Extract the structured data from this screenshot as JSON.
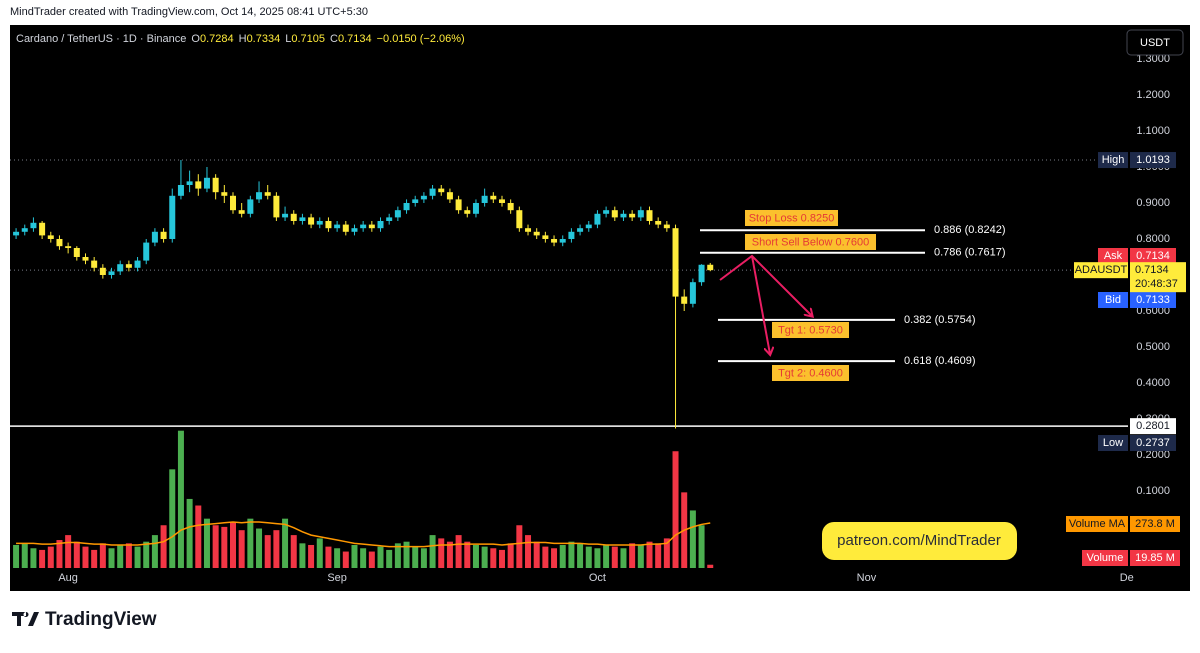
{
  "header": {
    "text": "MindTrader created with TradingView.com, Oct 14, 2025 08:41 UTC+5:30"
  },
  "chart_data": {
    "type": "candlestick",
    "legend": {
      "symbol": "Cardano / TetherUS · 1D · Binance",
      "open_label": "O",
      "open": "0.7284",
      "high_label": "H",
      "high": "0.7334",
      "low_label": "L",
      "low": "0.7105",
      "close_label": "C",
      "close": "0.7134",
      "change": "−0.0150 (−2.06%)"
    },
    "currency": "USDT",
    "up_color": "#26c6da",
    "down_color": "#ffeb3b",
    "xlim": [
      -0.7,
      127.8
    ],
    "xticks": [
      {
        "value": 6,
        "label": "Aug"
      },
      {
        "value": 37,
        "label": "Sep"
      },
      {
        "value": 67,
        "label": "Oct"
      },
      {
        "value": 98,
        "label": "Nov"
      },
      {
        "value": 128,
        "label": "De"
      }
    ],
    "ylim": [
      -0.1139,
      1.3944
    ],
    "yticks": [
      {
        "value": 0.1,
        "label": "0.1000"
      },
      {
        "value": 0.2,
        "label": "0.2000"
      },
      {
        "value": 0.3,
        "label": "0.3000"
      },
      {
        "value": 0.4,
        "label": "0.4000"
      },
      {
        "value": 0.5,
        "label": "0.5000"
      },
      {
        "value": 0.6,
        "label": "0.6000"
      },
      {
        "value": 0.7,
        "label": "0.7000"
      },
      {
        "value": 0.8,
        "label": "0.8000"
      },
      {
        "value": 0.9,
        "label": "0.9000"
      },
      {
        "value": 1.0,
        "label": "1.0000"
      },
      {
        "value": 1.1,
        "label": "1.1000"
      },
      {
        "value": 1.2,
        "label": "1.2000"
      },
      {
        "value": 1.3,
        "label": "1.3000"
      }
    ],
    "ohlc": [
      [
        0.81,
        0.83,
        0.8,
        0.82
      ],
      [
        0.82,
        0.84,
        0.81,
        0.83
      ],
      [
        0.83,
        0.86,
        0.82,
        0.845
      ],
      [
        0.845,
        0.85,
        0.8,
        0.81
      ],
      [
        0.81,
        0.82,
        0.79,
        0.8
      ],
      [
        0.8,
        0.81,
        0.77,
        0.78
      ],
      [
        0.78,
        0.79,
        0.76,
        0.775
      ],
      [
        0.775,
        0.78,
        0.74,
        0.75
      ],
      [
        0.75,
        0.76,
        0.73,
        0.74
      ],
      [
        0.74,
        0.75,
        0.71,
        0.72
      ],
      [
        0.72,
        0.73,
        0.69,
        0.7
      ],
      [
        0.7,
        0.72,
        0.69,
        0.71
      ],
      [
        0.71,
        0.74,
        0.7,
        0.73
      ],
      [
        0.73,
        0.74,
        0.71,
        0.72
      ],
      [
        0.72,
        0.75,
        0.71,
        0.74
      ],
      [
        0.74,
        0.8,
        0.73,
        0.79
      ],
      [
        0.79,
        0.83,
        0.78,
        0.82
      ],
      [
        0.82,
        0.83,
        0.79,
        0.8
      ],
      [
        0.8,
        0.94,
        0.79,
        0.92
      ],
      [
        0.92,
        1.0193,
        0.91,
        0.95
      ],
      [
        0.95,
        0.99,
        0.93,
        0.96
      ],
      [
        0.96,
        0.98,
        0.92,
        0.94
      ],
      [
        0.94,
        1.0,
        0.93,
        0.97
      ],
      [
        0.97,
        0.98,
        0.91,
        0.93
      ],
      [
        0.93,
        0.95,
        0.9,
        0.92
      ],
      [
        0.92,
        0.93,
        0.87,
        0.88
      ],
      [
        0.88,
        0.9,
        0.86,
        0.87
      ],
      [
        0.87,
        0.92,
        0.86,
        0.91
      ],
      [
        0.91,
        0.96,
        0.9,
        0.93
      ],
      [
        0.93,
        0.95,
        0.91,
        0.92
      ],
      [
        0.92,
        0.93,
        0.85,
        0.86
      ],
      [
        0.86,
        0.89,
        0.85,
        0.87
      ],
      [
        0.87,
        0.88,
        0.84,
        0.85
      ],
      [
        0.85,
        0.87,
        0.84,
        0.86
      ],
      [
        0.86,
        0.87,
        0.83,
        0.84
      ],
      [
        0.84,
        0.86,
        0.83,
        0.85
      ],
      [
        0.85,
        0.86,
        0.82,
        0.83
      ],
      [
        0.83,
        0.85,
        0.82,
        0.84
      ],
      [
        0.84,
        0.85,
        0.81,
        0.82
      ],
      [
        0.82,
        0.84,
        0.81,
        0.83
      ],
      [
        0.83,
        0.85,
        0.82,
        0.84
      ],
      [
        0.84,
        0.85,
        0.82,
        0.83
      ],
      [
        0.83,
        0.86,
        0.82,
        0.85
      ],
      [
        0.85,
        0.87,
        0.84,
        0.86
      ],
      [
        0.86,
        0.89,
        0.85,
        0.88
      ],
      [
        0.88,
        0.91,
        0.87,
        0.9
      ],
      [
        0.9,
        0.92,
        0.89,
        0.91
      ],
      [
        0.91,
        0.93,
        0.9,
        0.92
      ],
      [
        0.92,
        0.95,
        0.91,
        0.94
      ],
      [
        0.94,
        0.95,
        0.92,
        0.93
      ],
      [
        0.93,
        0.94,
        0.9,
        0.91
      ],
      [
        0.91,
        0.92,
        0.87,
        0.88
      ],
      [
        0.88,
        0.89,
        0.86,
        0.87
      ],
      [
        0.87,
        0.91,
        0.86,
        0.9
      ],
      [
        0.9,
        0.94,
        0.89,
        0.92
      ],
      [
        0.92,
        0.93,
        0.9,
        0.91
      ],
      [
        0.91,
        0.92,
        0.89,
        0.9
      ],
      [
        0.9,
        0.91,
        0.87,
        0.88
      ],
      [
        0.88,
        0.89,
        0.82,
        0.83
      ],
      [
        0.83,
        0.84,
        0.81,
        0.82
      ],
      [
        0.82,
        0.83,
        0.8,
        0.81
      ],
      [
        0.81,
        0.82,
        0.79,
        0.8
      ],
      [
        0.8,
        0.81,
        0.78,
        0.79
      ],
      [
        0.79,
        0.81,
        0.78,
        0.8
      ],
      [
        0.8,
        0.83,
        0.79,
        0.82
      ],
      [
        0.82,
        0.84,
        0.81,
        0.83
      ],
      [
        0.83,
        0.85,
        0.82,
        0.84
      ],
      [
        0.84,
        0.88,
        0.83,
        0.87
      ],
      [
        0.87,
        0.89,
        0.86,
        0.88
      ],
      [
        0.88,
        0.89,
        0.85,
        0.86
      ],
      [
        0.86,
        0.88,
        0.85,
        0.87
      ],
      [
        0.87,
        0.88,
        0.85,
        0.86
      ],
      [
        0.86,
        0.89,
        0.85,
        0.88
      ],
      [
        0.88,
        0.89,
        0.84,
        0.85
      ],
      [
        0.85,
        0.86,
        0.83,
        0.84
      ],
      [
        0.84,
        0.85,
        0.82,
        0.83
      ],
      [
        0.83,
        0.84,
        0.2737,
        0.64
      ],
      [
        0.64,
        0.66,
        0.6,
        0.62
      ],
      [
        0.62,
        0.69,
        0.61,
        0.68
      ],
      [
        0.68,
        0.73,
        0.67,
        0.7284
      ],
      [
        0.7284,
        0.7334,
        0.7105,
        0.7134
      ]
    ],
    "volume": {
      "name": "Volume",
      "up_color": "#4caf50",
      "down_color": "#f23645",
      "ylim": [
        0,
        900
      ],
      "values": [
        140,
        150,
        120,
        110,
        130,
        170,
        200,
        160,
        130,
        110,
        150,
        120,
        140,
        150,
        130,
        160,
        200,
        260,
        600,
        835,
        420,
        380,
        300,
        260,
        250,
        280,
        230,
        300,
        240,
        200,
        230,
        300,
        200,
        150,
        140,
        180,
        130,
        120,
        100,
        140,
        120,
        100,
        130,
        110,
        150,
        160,
        130,
        120,
        200,
        180,
        160,
        200,
        160,
        140,
        130,
        120,
        110,
        150,
        260,
        200,
        160,
        130,
        120,
        140,
        160,
        150,
        130,
        120,
        140,
        130,
        120,
        150,
        140,
        160,
        150,
        180,
        710,
        460,
        350,
        260,
        19.85
      ],
      "last_label": "19.85 M",
      "ma_name": "Volume MA",
      "ma_color": "#ff9800",
      "ma_values": [
        150,
        150,
        150,
        145,
        145,
        150,
        155,
        155,
        150,
        145,
        145,
        140,
        140,
        140,
        140,
        145,
        150,
        160,
        190,
        230,
        250,
        260,
        265,
        270,
        275,
        280,
        275,
        280,
        280,
        275,
        270,
        265,
        245,
        220,
        200,
        190,
        180,
        170,
        160,
        150,
        145,
        140,
        135,
        130,
        130,
        130,
        130,
        130,
        135,
        140,
        140,
        145,
        145,
        145,
        145,
        145,
        140,
        145,
        150,
        155,
        155,
        155,
        150,
        150,
        150,
        150,
        145,
        145,
        140,
        140,
        140,
        140,
        140,
        145,
        145,
        150,
        200,
        230,
        250,
        265,
        273.8
      ],
      "ma_last_label": "273.8 M"
    },
    "markers": {
      "high": {
        "label": "High",
        "value": 1.0193
      },
      "low": {
        "label": "Low",
        "value": 0.2737
      },
      "ask": {
        "label": "Ask",
        "value": 0.7134
      },
      "bid": {
        "label": "Bid",
        "value": 0.7133
      },
      "last": {
        "label": "ADAUSDT",
        "value": 0.7134,
        "countdown": "20:48:37"
      },
      "crosshair": {
        "value": 0.2801
      }
    },
    "fib_levels": [
      {
        "label": "0.886 (0.8242)",
        "value": 0.8242
      },
      {
        "label": "0.786 (0.7617)",
        "value": 0.7617
      },
      {
        "label": "0.382 (0.5754)",
        "value": 0.5754
      },
      {
        "label": "0.618 (0.4609)",
        "value": 0.4609
      }
    ],
    "trade_notes": [
      "Stop Loss 0.8250",
      "Short Sell Below 0.7600",
      "Tgt 1: 0.5730",
      "Tgt 2: 0.4600"
    ],
    "watermark": "patreon.com/MindTrader"
  },
  "footer": {
    "brand": "TradingView"
  }
}
